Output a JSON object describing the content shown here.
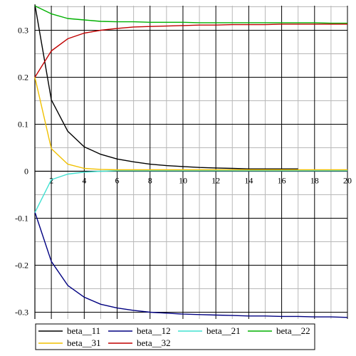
{
  "chart_data": {
    "type": "line",
    "title": "",
    "xlabel": "",
    "ylabel": "",
    "xlim": [
      1,
      20
    ],
    "ylim": [
      -0.31,
      0.35
    ],
    "x_ticks": [
      2,
      4,
      6,
      8,
      10,
      12,
      14,
      16,
      18,
      20
    ],
    "y_ticks": [
      0.3,
      0.2,
      0.1,
      0,
      -0.1,
      -0.2,
      -0.3
    ],
    "x_tick_labels": [
      "2",
      "4",
      "6",
      "8",
      "10",
      "12",
      "14",
      "16",
      "18",
      "20"
    ],
    "y_tick_labels": [
      "0.3",
      "0.2",
      "0.1",
      "0",
      "-0.1",
      "-0.2",
      "-0.3"
    ],
    "grid": true,
    "legend_position": "bottom",
    "series": [
      {
        "name": "beta__11",
        "color": "#000000",
        "x": [
          1,
          2,
          3,
          4,
          5,
          6,
          7,
          8,
          9,
          10,
          11,
          12,
          13,
          14,
          15,
          16,
          17
        ],
        "y": [
          0.355,
          0.152,
          0.085,
          0.052,
          0.036,
          0.026,
          0.02,
          0.015,
          0.012,
          0.01,
          0.008,
          0.007,
          0.006,
          0.005,
          0.005,
          0.005,
          0.005
        ]
      },
      {
        "name": "beta__12",
        "color": "#000080",
        "x": [
          1,
          2,
          3,
          4,
          5,
          6,
          7,
          8,
          9,
          10,
          11,
          12,
          13,
          14,
          15,
          16,
          17,
          18,
          19,
          20
        ],
        "y": [
          -0.087,
          -0.192,
          -0.243,
          -0.268,
          -0.283,
          -0.291,
          -0.296,
          -0.3,
          -0.302,
          -0.304,
          -0.305,
          -0.306,
          -0.307,
          -0.308,
          -0.308,
          -0.309,
          -0.309,
          -0.31,
          -0.31,
          -0.311
        ]
      },
      {
        "name": "beta__21",
        "color": "#40e0d0",
        "x": [
          1,
          2,
          3,
          4,
          5,
          6,
          7,
          8,
          9,
          10,
          11,
          12,
          13,
          14,
          15,
          16,
          17,
          18,
          19,
          20
        ],
        "y": [
          -0.088,
          -0.018,
          -0.006,
          -0.002,
          0.0,
          0.001,
          0.001,
          0.001,
          0.001,
          0.001,
          0.001,
          0.001,
          0.001,
          0.001,
          0.001,
          0.001,
          0.001,
          0.001,
          0.001,
          0.001
        ]
      },
      {
        "name": "beta__22",
        "color": "#00b000",
        "x": [
          1,
          2,
          3,
          4,
          5,
          6,
          7,
          8,
          9,
          10,
          11,
          12,
          13,
          14,
          15,
          16,
          17,
          18,
          19,
          20
        ],
        "y": [
          0.352,
          0.335,
          0.325,
          0.322,
          0.319,
          0.318,
          0.318,
          0.317,
          0.317,
          0.317,
          0.316,
          0.316,
          0.316,
          0.316,
          0.316,
          0.316,
          0.316,
          0.316,
          0.315,
          0.315
        ]
      },
      {
        "name": "beta__31",
        "color": "#f0c000",
        "x": [
          1,
          2,
          3,
          4,
          5,
          6,
          7,
          8,
          9,
          10,
          11,
          12,
          13,
          14,
          15,
          16,
          17,
          18,
          19,
          20
        ],
        "y": [
          0.2,
          0.048,
          0.015,
          0.006,
          0.004,
          0.003,
          0.003,
          0.003,
          0.003,
          0.003,
          0.003,
          0.003,
          0.003,
          0.003,
          0.003,
          0.003,
          0.003,
          0.003,
          0.003,
          0.003
        ]
      },
      {
        "name": "beta__32",
        "color": "#c00000",
        "x": [
          1,
          2,
          3,
          4,
          5,
          6,
          7,
          8,
          9,
          10,
          11,
          12,
          13,
          14,
          15,
          16,
          17,
          18,
          19,
          20
        ],
        "y": [
          0.2,
          0.256,
          0.282,
          0.294,
          0.3,
          0.304,
          0.307,
          0.308,
          0.309,
          0.31,
          0.311,
          0.311,
          0.312,
          0.312,
          0.312,
          0.313,
          0.313,
          0.313,
          0.313,
          0.313
        ]
      }
    ]
  }
}
